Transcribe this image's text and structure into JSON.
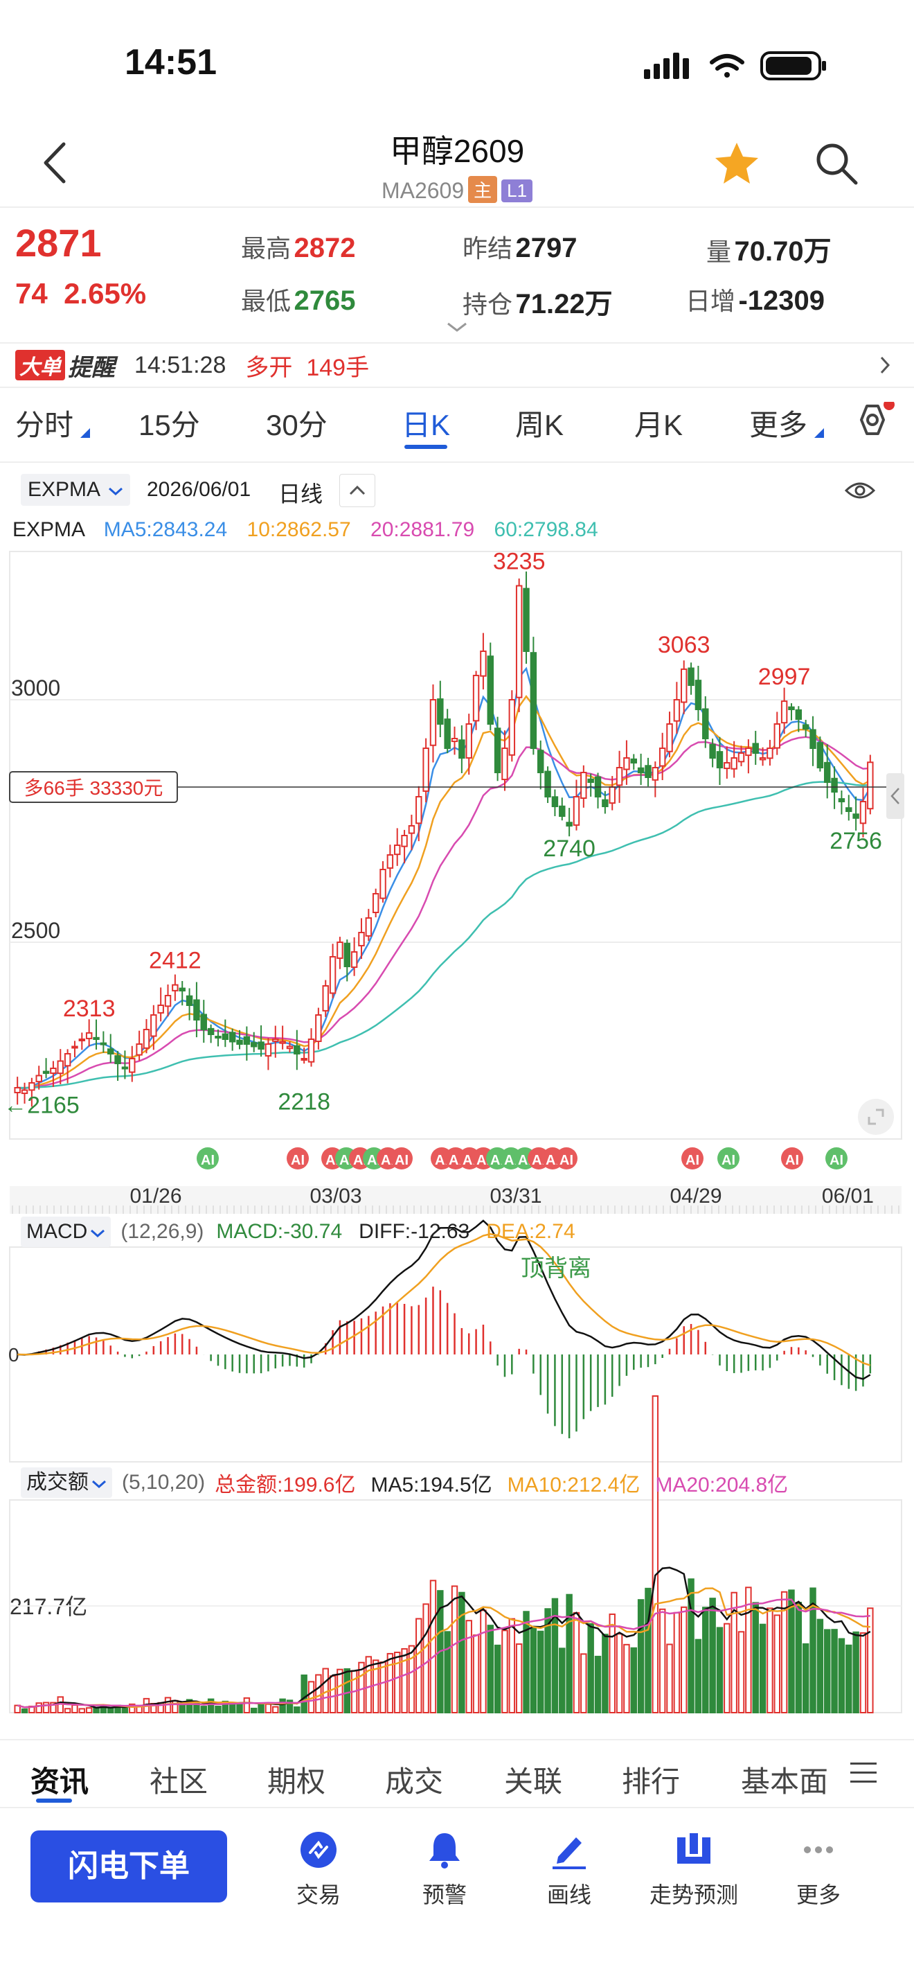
{
  "status": {
    "time": "14:51"
  },
  "header": {
    "title": "甲醇2609",
    "code": "MA2609",
    "tag_main": "主",
    "tag_level": "L1"
  },
  "quote": {
    "last": "2871",
    "change": "74",
    "change_pct": "2.65%",
    "high_label": "最高",
    "high": "2872",
    "low_label": "最低",
    "low": "2765",
    "prev_settle_label": "昨结",
    "prev_settle": "2797",
    "open_interest_label": "持仓",
    "open_interest": "71.22万",
    "volume_label": "量",
    "volume": "70.70万",
    "daily_inc_label": "日增",
    "daily_inc": "-12309"
  },
  "alert": {
    "badge": "大单",
    "badge2": "提醒",
    "time": "14:51:28",
    "action": "多开",
    "qty": "149手"
  },
  "period_tabs": [
    {
      "label": "分时"
    },
    {
      "label": "15分"
    },
    {
      "label": "30分"
    },
    {
      "label": "日K"
    },
    {
      "label": "周K"
    },
    {
      "label": "月K"
    },
    {
      "label": "更多"
    }
  ],
  "indicator_bar": {
    "indicator": "EXPMA",
    "date": "2026/06/01",
    "period": "日线"
  },
  "ema": {
    "label": "EXPMA",
    "ma5": "MA5:2843.24",
    "ma10": "10:2862.57",
    "ma20": "20:2881.79",
    "ma60": "60:2798.84"
  },
  "colors": {
    "up": "#e0312e",
    "down": "#2f8a3c",
    "ma5": "#3a8ee6",
    "ma10": "#f0a020",
    "ma20": "#d84bb0",
    "ma60": "#3fbfb0",
    "accent": "#1f5bd8"
  },
  "chart_data": [
    {
      "type": "candlestick",
      "y_ticks": [
        "3000",
        "2500"
      ],
      "x_ticks": [
        "01/26",
        "03/03",
        "03/31",
        "04/29",
        "06/01"
      ],
      "ylim": [
        2100,
        3300
      ],
      "annotations": [
        {
          "text": "3235",
          "value": 3235,
          "kind": "high"
        },
        {
          "text": "3063",
          "value": 3063,
          "kind": "high"
        },
        {
          "text": "2997",
          "value": 2997,
          "kind": "high"
        },
        {
          "text": "2412",
          "value": 2412,
          "kind": "high"
        },
        {
          "text": "2313",
          "value": 2313,
          "kind": "high"
        },
        {
          "text": "2740",
          "value": 2740,
          "kind": "low"
        },
        {
          "text": "2756",
          "value": 2756,
          "kind": "low"
        },
        {
          "text": "2218",
          "value": 2218,
          "kind": "low"
        },
        {
          "text": "←2165",
          "value": 2165,
          "kind": "low"
        }
      ],
      "position_line_label": "多66手 33330元",
      "position_line_value": 2820,
      "ai_label": "AI",
      "closes": [
        2200,
        2195,
        2210,
        2225,
        2230,
        2240,
        2255,
        2270,
        2285,
        2300,
        2313,
        2300,
        2290,
        2270,
        2250,
        2240,
        2260,
        2290,
        2320,
        2350,
        2370,
        2390,
        2412,
        2400,
        2370,
        2340,
        2320,
        2310,
        2305,
        2300,
        2295,
        2290,
        2290,
        2285,
        2280,
        2290,
        2300,
        2295,
        2285,
        2270,
        2260,
        2300,
        2350,
        2410,
        2470,
        2500,
        2450,
        2480,
        2520,
        2550,
        2600,
        2650,
        2680,
        2700,
        2720,
        2740,
        2800,
        2900,
        3000,
        2950,
        2900,
        2920,
        2880,
        2950,
        3050,
        3100,
        2950,
        2850,
        2900,
        3000,
        3235,
        3100,
        2900,
        2850,
        2800,
        2780,
        2760,
        2740,
        2800,
        2850,
        2830,
        2800,
        2780,
        2820,
        2860,
        2880,
        2870,
        2850,
        2840,
        2860,
        2900,
        2950,
        3000,
        3063,
        3030,
        2980,
        2920,
        2880,
        2860,
        2870,
        2880,
        2890,
        2900,
        2890,
        2880,
        2900,
        2950,
        2997,
        2980,
        2960,
        2940,
        2900,
        2860,
        2830,
        2810,
        2790,
        2770,
        2756,
        2790,
        2871
      ]
    },
    {
      "type": "macd",
      "name": "MACD",
      "params": "(12,26,9)",
      "macd_label": "MACD:-30.74",
      "diff_label": "DIFF:-12.63",
      "dea_label": "DEA:2.74",
      "annotation": "顶背离"
    },
    {
      "type": "bar",
      "name": "成交额",
      "params": "(5,10,20)",
      "total_label": "总金额:199.6亿",
      "ma5_label": "MA5:194.5亿",
      "ma10_label": "MA10:212.4亿",
      "ma20_label": "MA20:204.8亿",
      "y_tick": "217.7亿"
    }
  ],
  "bottom_tabs": [
    {
      "label": "资讯"
    },
    {
      "label": "社区"
    },
    {
      "label": "期权"
    },
    {
      "label": "成交"
    },
    {
      "label": "关联"
    },
    {
      "label": "排行"
    },
    {
      "label": "基本面"
    }
  ],
  "actions": {
    "quick_order": "闪电下单",
    "trade": "交易",
    "alert": "预警",
    "draw": "画线",
    "forecast": "走势预测",
    "more": "更多"
  }
}
